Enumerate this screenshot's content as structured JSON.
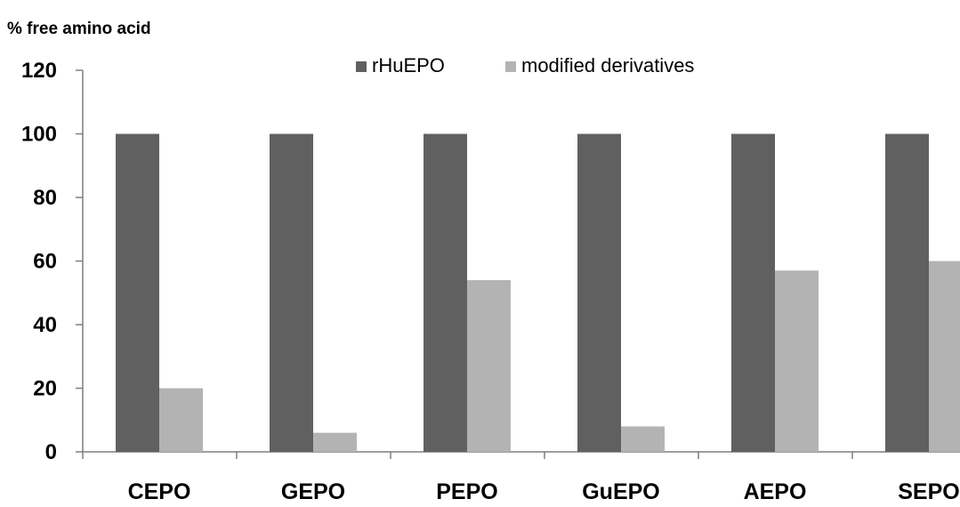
{
  "chart_data": {
    "type": "bar",
    "ylabel": "% free amino acid",
    "xlabel": "",
    "categories": [
      "CEPO",
      "GEPO",
      "PEPO",
      "GuEPO",
      "AEPO",
      "SEPO"
    ],
    "series": [
      {
        "name": "rHuEPO",
        "color": "#606060",
        "values": [
          100,
          100,
          100,
          100,
          100,
          100
        ]
      },
      {
        "name": "modified derivatives",
        "color": "#b3b3b3",
        "values": [
          20,
          6,
          54,
          8,
          57,
          60
        ]
      }
    ],
    "ylim": [
      0,
      120
    ],
    "yticks": [
      0,
      20,
      40,
      60,
      80,
      100,
      120
    ],
    "grid": false,
    "legend_position": "top"
  }
}
